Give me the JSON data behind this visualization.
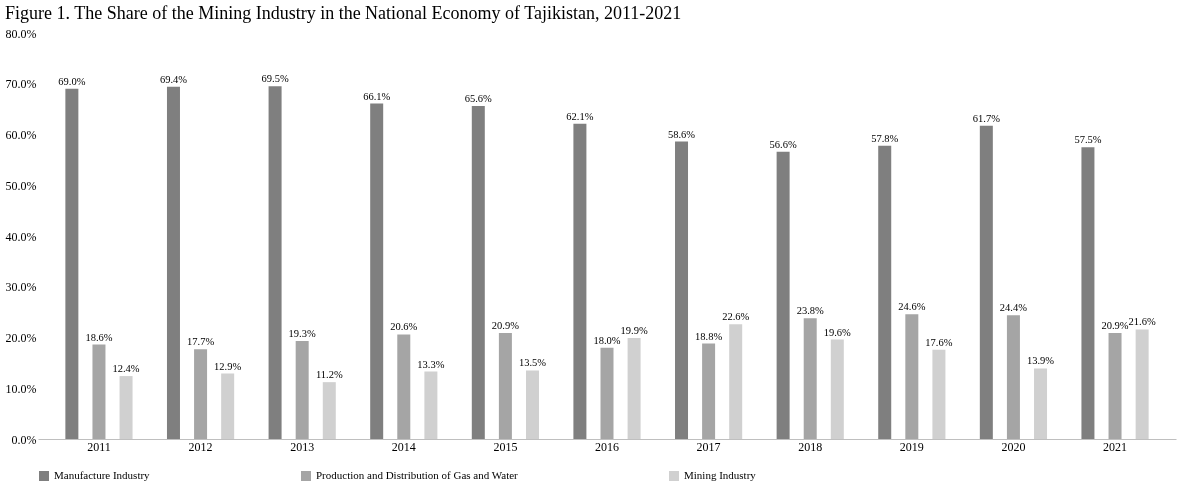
{
  "chart_data": {
    "type": "bar",
    "title": "Figure 1. The Share of the Mining Industry in the National Economy of Tajikistan, 2011-2021",
    "categories": [
      "2011",
      "2012",
      "2013",
      "2014",
      "2015",
      "2016",
      "2017",
      "2018",
      "2019",
      "2020",
      "2021"
    ],
    "series": [
      {
        "name": "Manufacture Industry",
        "color": "#7f7f7f",
        "values": [
          69.0,
          69.4,
          69.5,
          66.1,
          65.6,
          62.1,
          58.6,
          56.6,
          57.8,
          61.7,
          57.5
        ],
        "value_labels": [
          "69.0%",
          "69.4%",
          "69.5%",
          "66.1%",
          "65.6%",
          "62.1%",
          "58.6%",
          "56.6%",
          "57.8%",
          "61.7%",
          "57.5%"
        ]
      },
      {
        "name": "Production and Distribution of Gas and Water",
        "color": "#a5a5a5",
        "values": [
          18.6,
          17.7,
          19.3,
          20.6,
          20.9,
          18.0,
          18.8,
          23.8,
          24.6,
          24.4,
          20.9
        ],
        "value_labels": [
          "18.6%",
          "17.7%",
          "19.3%",
          "20.6%",
          "20.9%",
          "18.0%",
          "18.8%",
          "23.8%",
          "24.6%",
          "24.4%",
          "20.9%"
        ]
      },
      {
        "name": "Mining Industry",
        "color": "#d0d0d0",
        "values": [
          12.4,
          12.9,
          11.2,
          13.3,
          13.5,
          19.9,
          22.6,
          19.6,
          17.6,
          13.9,
          21.6
        ],
        "value_labels": [
          "12.4%",
          "12.9%",
          "11.2%",
          "13.3%",
          "13.5%",
          "19.9%",
          "22.6%",
          "19.6%",
          "17.6%",
          "13.9%",
          "21.6%"
        ]
      }
    ],
    "ylim": [
      0,
      80
    ],
    "yticks": [
      {
        "value": 0,
        "label": "0.0%"
      },
      {
        "value": 10,
        "label": "10.0%"
      },
      {
        "value": 20,
        "label": "20.0%"
      },
      {
        "value": 30,
        "label": "30.0%"
      },
      {
        "value": 40,
        "label": "40.0%"
      },
      {
        "value": 50,
        "label": "50.0%"
      },
      {
        "value": 60,
        "label": "60.0%"
      },
      {
        "value": 70,
        "label": "70.0%"
      },
      {
        "value": 80,
        "label": "80.0%"
      }
    ],
    "grid": false,
    "legend": "bottom"
  }
}
